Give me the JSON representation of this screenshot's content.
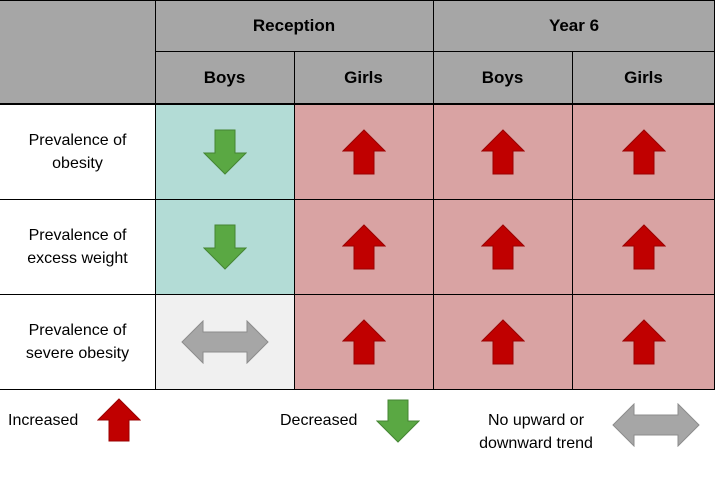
{
  "header": {
    "reception": "Reception",
    "year6": "Year 6",
    "cols": [
      "Boys",
      "Girls",
      "Boys",
      "Girls"
    ]
  },
  "rows": [
    {
      "label": [
        "Prevalence of",
        "obesity"
      ],
      "trends": [
        "decreased",
        "increased",
        "increased",
        "increased"
      ]
    },
    {
      "label": [
        "Prevalence of",
        "excess weight"
      ],
      "trends": [
        "decreased",
        "increased",
        "increased",
        "increased"
      ]
    },
    {
      "label": [
        "Prevalence of",
        "severe obesity"
      ],
      "trends": [
        "no-trend",
        "increased",
        "increased",
        "increased"
      ]
    }
  ],
  "legend": {
    "increased": "Increased",
    "decreased": "Decreased",
    "no_trend_line1": "No upward or",
    "no_trend_line2": "downward trend"
  },
  "colors": {
    "header_bg": "#a6a6a6",
    "increased_bg": "#d9a3a3",
    "decreased_bg": "#b3dcd6",
    "no_trend_bg": "#f0f0f0",
    "up_arrow": "#c00000",
    "down_arrow": "#5aa843",
    "neutral_arrow": "#a6a6a6"
  },
  "icons": {
    "increased": "up-arrow-icon",
    "decreased": "down-arrow-icon",
    "no_trend": "double-headed-arrow-icon"
  }
}
